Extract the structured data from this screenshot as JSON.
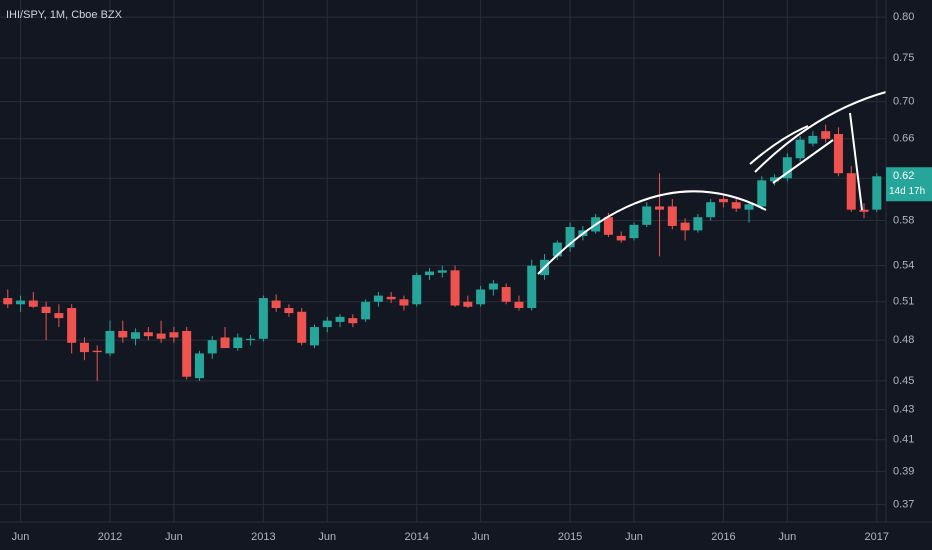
{
  "chart_data": {
    "type": "candlestick",
    "title": "IHI/SPY, 1M, Cboe BZX",
    "categories": [
      null,
      "Jun",
      null,
      null,
      null,
      null,
      null,
      null,
      "2012",
      null,
      null,
      null,
      null,
      "Jun",
      null,
      null,
      null,
      null,
      null,
      null,
      "2013",
      null,
      null,
      null,
      null,
      "Jun",
      null,
      null,
      null,
      null,
      null,
      null,
      "2014",
      null,
      null,
      null,
      null,
      "Jun",
      null,
      null,
      null,
      null,
      null,
      null,
      "2015",
      null,
      null,
      null,
      null,
      "Jun",
      null,
      null,
      null,
      null,
      null,
      null,
      "2016",
      null,
      null,
      null,
      null,
      "Jun",
      null,
      null,
      null,
      null,
      null,
      null,
      "2017"
    ],
    "open": [
      0.513,
      0.508,
      0.511,
      0.506,
      0.501,
      0.505,
      0.478,
      0.472,
      0.47,
      0.487,
      0.481,
      0.486,
      0.485,
      0.486,
      0.487,
      0.452,
      0.47,
      0.482,
      0.474,
      0.48,
      0.481,
      0.511,
      0.505,
      0.502,
      0.476,
      0.49,
      0.494,
      0.497,
      0.496,
      0.51,
      0.514,
      0.512,
      0.508,
      0.532,
      0.534,
      0.536,
      0.51,
      0.508,
      0.52,
      0.522,
      0.51,
      0.505,
      0.532,
      0.548,
      0.556,
      0.566,
      0.57,
      0.583,
      0.566,
      0.564,
      0.576,
      0.593,
      0.593,
      0.578,
      0.571,
      0.583,
      0.6,
      0.597,
      0.59,
      0.593,
      0.617,
      0.62,
      0.64,
      0.655,
      0.668,
      0.665,
      0.625,
      0.59,
      0.59
    ],
    "high": [
      0.52,
      0.515,
      0.518,
      0.51,
      0.508,
      0.508,
      0.482,
      0.476,
      0.495,
      0.495,
      0.489,
      0.49,
      0.495,
      0.49,
      0.49,
      0.472,
      0.483,
      0.49,
      0.485,
      0.484,
      0.515,
      0.516,
      0.508,
      0.505,
      0.492,
      0.498,
      0.5,
      0.5,
      0.512,
      0.518,
      0.518,
      0.515,
      0.534,
      0.538,
      0.54,
      0.54,
      0.515,
      0.523,
      0.528,
      0.525,
      0.515,
      0.545,
      0.55,
      0.562,
      0.578,
      0.575,
      0.586,
      0.587,
      0.57,
      0.578,
      0.597,
      0.625,
      0.6,
      0.582,
      0.586,
      0.6,
      0.604,
      0.602,
      0.597,
      0.622,
      0.624,
      0.645,
      0.663,
      0.668,
      0.675,
      0.672,
      0.632,
      0.596,
      0.625
    ],
    "low": [
      0.505,
      0.502,
      0.505,
      0.48,
      0.49,
      0.47,
      0.465,
      0.45,
      0.468,
      0.478,
      0.476,
      0.48,
      0.478,
      0.478,
      0.451,
      0.45,
      0.466,
      0.474,
      0.472,
      0.476,
      0.479,
      0.502,
      0.498,
      0.476,
      0.474,
      0.486,
      0.49,
      0.49,
      0.494,
      0.506,
      0.509,
      0.503,
      0.506,
      0.528,
      0.53,
      0.506,
      0.505,
      0.506,
      0.515,
      0.508,
      0.503,
      0.503,
      0.528,
      0.545,
      0.552,
      0.562,
      0.568,
      0.565,
      0.56,
      0.562,
      0.574,
      0.548,
      0.572,
      0.562,
      0.569,
      0.58,
      0.592,
      0.588,
      0.578,
      0.59,
      0.613,
      0.617,
      0.637,
      0.652,
      0.656,
      0.622,
      0.588,
      0.582,
      0.588
    ],
    "close": [
      0.508,
      0.511,
      0.506,
      0.501,
      0.497,
      0.478,
      0.471,
      0.471,
      0.487,
      0.482,
      0.486,
      0.483,
      0.481,
      0.482,
      0.453,
      0.47,
      0.48,
      0.474,
      0.482,
      0.481,
      0.513,
      0.505,
      0.501,
      0.478,
      0.49,
      0.495,
      0.498,
      0.493,
      0.51,
      0.515,
      0.512,
      0.507,
      0.532,
      0.535,
      0.536,
      0.507,
      0.506,
      0.52,
      0.525,
      0.51,
      0.505,
      0.54,
      0.545,
      0.56,
      0.574,
      0.571,
      0.583,
      0.567,
      0.562,
      0.576,
      0.593,
      0.59,
      0.575,
      0.571,
      0.583,
      0.597,
      0.597,
      0.591,
      0.595,
      0.618,
      0.621,
      0.641,
      0.659,
      0.663,
      0.66,
      0.625,
      0.59,
      0.588,
      0.622
    ],
    "up_color": "#26a69a",
    "down_color": "#ef5350",
    "log_scale": true,
    "ylim": [
      0.36,
      0.822
    ],
    "yticks": [
      {
        "value": 0.8,
        "label": "0.80"
      },
      0.75,
      {
        "value": 0.7,
        "label": "0.70"
      },
      0.66,
      0.62,
      0.58,
      0.54,
      0.51,
      0.48,
      0.45,
      0.43,
      0.41,
      0.39,
      0.37
    ],
    "grid": true,
    "last_price_label": "0.62",
    "countdown": "14d 17h"
  }
}
